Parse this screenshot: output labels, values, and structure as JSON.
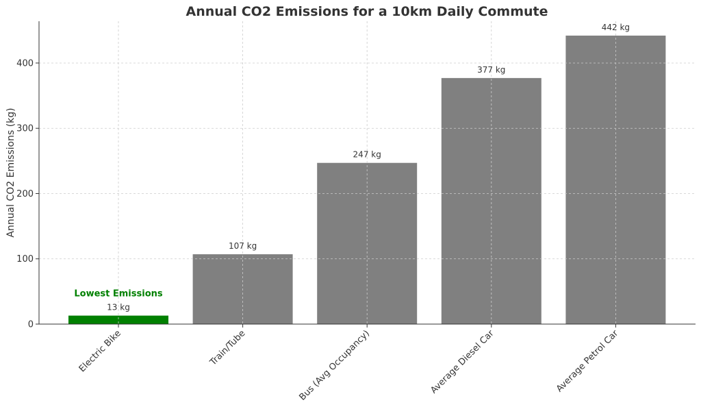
{
  "chart_data": {
    "type": "bar",
    "title": "Annual CO2 Emissions for a 10km Daily Commute",
    "xlabel": "",
    "ylabel": "Annual CO2 Emissions (kg)",
    "categories": [
      "Electric Bike",
      "Train/Tube",
      "Bus (Avg Occupancy)",
      "Average Diesel Car",
      "Average Petrol Car"
    ],
    "values": [
      13,
      107,
      247,
      377,
      442
    ],
    "value_labels": [
      "13 kg",
      "107 kg",
      "247 kg",
      "377 kg",
      "442 kg"
    ],
    "colors": [
      "#008000",
      "#808080",
      "#808080",
      "#808080",
      "#808080"
    ],
    "yticks": [
      0,
      100,
      200,
      300,
      400
    ],
    "ylim": [
      0,
      464
    ],
    "grid": true,
    "annotation": {
      "text": "Lowest Emissions",
      "category_index": 0,
      "color": "#008000"
    }
  }
}
